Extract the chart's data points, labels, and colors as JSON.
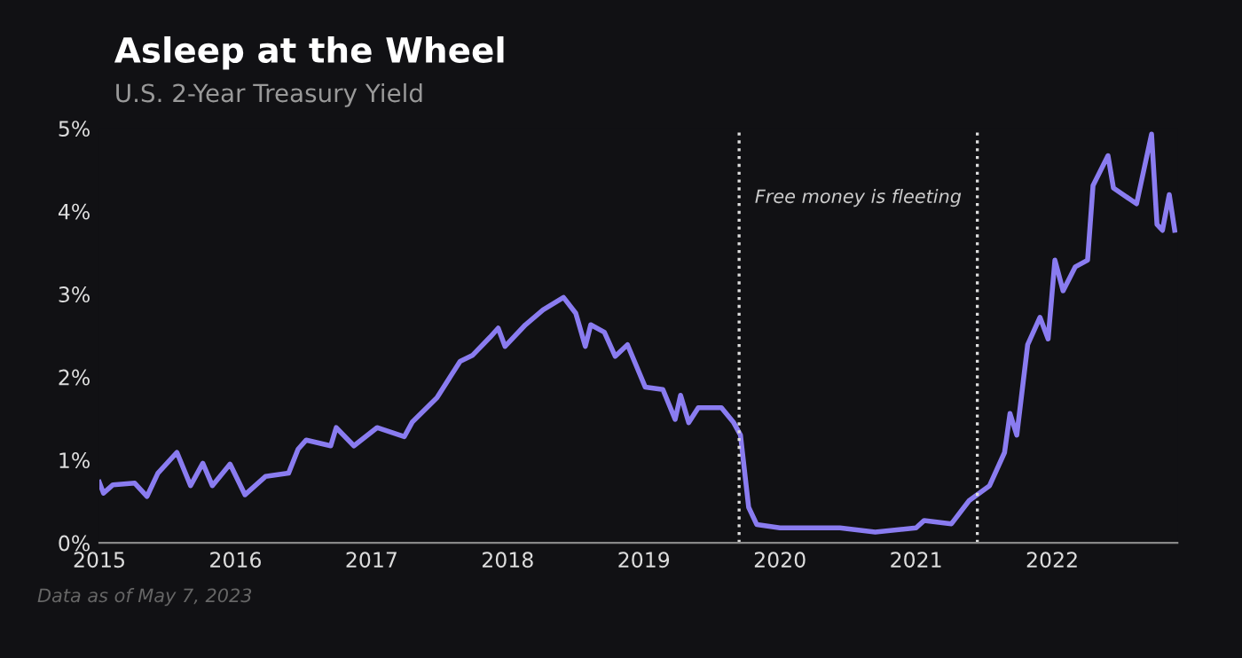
{
  "chart_data": {
    "type": "line",
    "title": "Asleep at the Wheel",
    "subtitle": "U.S. 2-Year Treasury Yield",
    "x": [
      2015.0,
      2015.03,
      2015.1,
      2015.26,
      2015.35,
      2015.43,
      2015.57,
      2015.67,
      2015.76,
      2015.83,
      2015.96,
      2016.07,
      2016.22,
      2016.39,
      2016.46,
      2016.52,
      2016.7,
      2016.74,
      2016.87,
      2017.04,
      2017.24,
      2017.3,
      2017.48,
      2017.65,
      2017.74,
      2017.87,
      2017.93,
      2017.98,
      2018.13,
      2018.26,
      2018.41,
      2018.5,
      2018.57,
      2018.61,
      2018.71,
      2018.79,
      2018.88,
      2019.01,
      2019.14,
      2019.23,
      2019.27,
      2019.33,
      2019.4,
      2019.57,
      2019.66,
      2019.71,
      2019.77,
      2019.83,
      2020.0,
      2020.44,
      2020.7,
      2021.0,
      2021.06,
      2021.26,
      2021.39,
      2021.54,
      2021.65,
      2021.69,
      2021.74,
      2021.82,
      2021.91,
      2021.97,
      2022.02,
      2022.08,
      2022.17,
      2022.26,
      2022.3,
      2022.41,
      2022.45,
      2022.62,
      2022.73,
      2022.77,
      2022.81,
      2022.86,
      2022.9
    ],
    "series": [
      {
        "color": "#8a7cf0",
        "values": [
          0.73,
          0.6,
          0.7,
          0.72,
          0.56,
          0.84,
          1.09,
          0.69,
          0.96,
          0.69,
          0.95,
          0.58,
          0.8,
          0.84,
          1.13,
          1.24,
          1.17,
          1.39,
          1.17,
          1.39,
          1.28,
          1.46,
          1.75,
          2.19,
          2.26,
          2.48,
          2.59,
          2.37,
          2.63,
          2.81,
          2.96,
          2.77,
          2.37,
          2.63,
          2.54,
          2.25,
          2.39,
          1.88,
          1.85,
          1.49,
          1.78,
          1.45,
          1.63,
          1.63,
          1.45,
          1.3,
          0.43,
          0.22,
          0.18,
          0.18,
          0.13,
          0.18,
          0.27,
          0.23,
          0.51,
          0.69,
          1.09,
          1.56,
          1.3,
          2.39,
          2.72,
          2.46,
          3.41,
          3.04,
          3.33,
          3.41,
          4.31,
          4.67,
          4.28,
          4.09,
          4.93,
          3.84,
          3.77,
          4.2,
          3.77
        ]
      }
    ],
    "xlim": [
      2015,
      2022.92
    ],
    "xticks": [
      2015,
      2016,
      2017,
      2018,
      2019,
      2020,
      2021,
      2022
    ],
    "ylim": [
      0,
      5
    ],
    "yticks": [
      {
        "value": 0,
        "label": "0%"
      },
      {
        "value": 1,
        "label": "1%"
      },
      {
        "value": 2,
        "label": "2%"
      },
      {
        "value": 3,
        "label": "3%"
      },
      {
        "value": 4,
        "label": "4%"
      },
      {
        "value": 5,
        "label": "5%"
      }
    ],
    "ref_lines": [
      {
        "axis": "x",
        "value": 2019.7,
        "color": "#dddddd",
        "line_style": "dotted"
      },
      {
        "axis": "x",
        "value": 2021.45,
        "color": "#dddddd",
        "line_style": "dotted"
      }
    ],
    "annotations": [
      "Free money is fleeting",
      "Data as of May 7, 2023"
    ],
    "grid": false,
    "legend": false,
    "marker": "none",
    "line_style": "solid"
  }
}
